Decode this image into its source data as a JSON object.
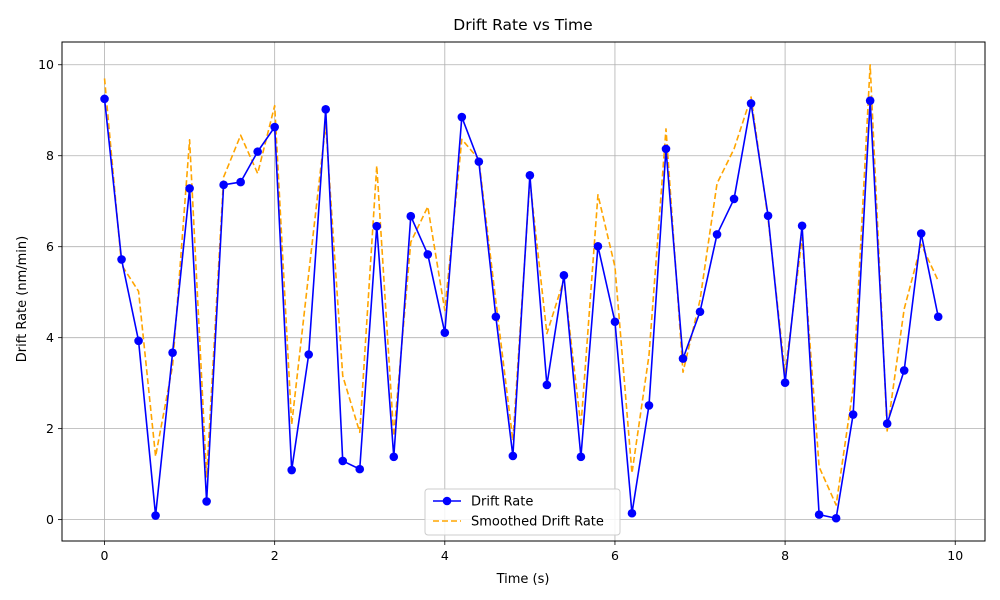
{
  "chart_data": {
    "type": "line",
    "title": "Drift Rate vs Time",
    "xlabel": "Time (s)",
    "ylabel": "Drift Rate (nm/min)",
    "xlim": [
      -0.5,
      10.35
    ],
    "ylim": [
      -0.47,
      10.5
    ],
    "xticks": [
      0,
      2,
      4,
      6,
      8,
      10
    ],
    "yticks": [
      0,
      2,
      4,
      6,
      8,
      10
    ],
    "grid": true,
    "legend_position": "bottom-center",
    "x": [
      0,
      0.2,
      0.4,
      0.6,
      0.8,
      1.0,
      1.2,
      1.4,
      1.6,
      1.8,
      2.0,
      2.2,
      2.4,
      2.6,
      2.8,
      3.0,
      3.2,
      3.4,
      3.6,
      3.8,
      4.0,
      4.2,
      4.4,
      4.6,
      4.8,
      5.0,
      5.2,
      5.4,
      5.6,
      5.8,
      6.0,
      6.2,
      6.4,
      6.6,
      6.8,
      7.0,
      7.2,
      7.4,
      7.6,
      7.8,
      8.0,
      8.2,
      8.4,
      8.6,
      8.8,
      9.0,
      9.2,
      9.4,
      9.6,
      9.8
    ],
    "series": [
      {
        "name": "Drift Rate",
        "color": "#0000ff",
        "style": "solid-with-markers",
        "values": [
          9.25,
          5.72,
          3.93,
          0.09,
          3.67,
          7.28,
          0.4,
          7.36,
          7.42,
          8.09,
          8.63,
          1.09,
          3.63,
          9.02,
          1.29,
          1.11,
          6.45,
          1.38,
          6.67,
          5.83,
          4.11,
          8.85,
          7.87,
          4.46,
          1.4,
          7.57,
          2.96,
          5.37,
          1.38,
          6.01,
          4.35,
          0.14,
          2.51,
          8.15,
          3.54,
          4.57,
          6.27,
          7.05,
          9.15,
          6.68,
          3.01,
          6.46,
          0.11,
          0.03,
          2.31,
          9.21,
          2.11,
          3.28,
          6.29,
          4.46
        ]
      },
      {
        "name": "Smoothed Drift Rate",
        "color": "#ffa500",
        "style": "dashed",
        "values": [
          9.7,
          5.6,
          5.02,
          1.39,
          3.38,
          8.35,
          0.94,
          7.53,
          8.45,
          7.61,
          9.1,
          2.09,
          5.41,
          8.69,
          3.16,
          1.92,
          7.78,
          1.84,
          6.1,
          6.88,
          4.6,
          8.36,
          7.92,
          4.8,
          1.74,
          7.46,
          4.09,
          5.28,
          2.05,
          7.14,
          5.56,
          1.02,
          3.61,
          8.59,
          3.24,
          4.83,
          7.39,
          8.15,
          9.29,
          6.61,
          3.21,
          6.2,
          1.16,
          0.32,
          2.89,
          10.0,
          1.95,
          4.63,
          6.05,
          5.25
        ]
      }
    ]
  }
}
